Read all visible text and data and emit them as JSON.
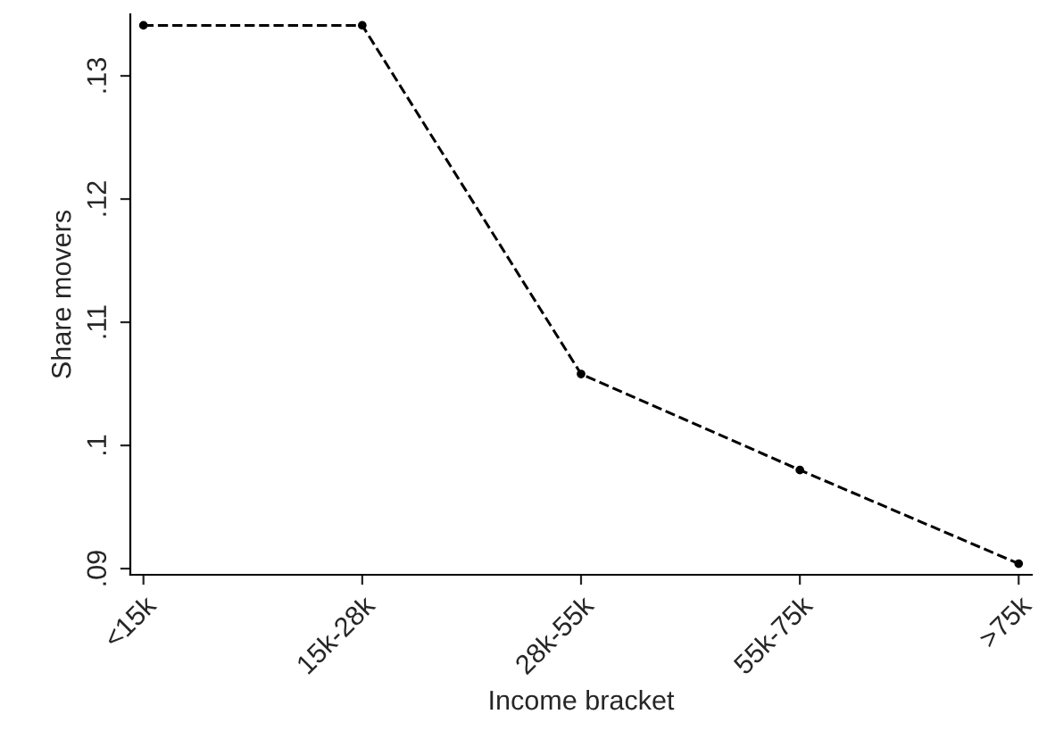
{
  "chart_data": {
    "type": "line",
    "xlabel": "Income bracket",
    "ylabel": "Share movers",
    "categories": [
      "<15k",
      "15k-28k",
      "28k-55k",
      "55k-75k",
      ">75k"
    ],
    "series": [
      {
        "color": "#000000",
        "values": [
          0.1341,
          0.1341,
          0.1058,
          0.098,
          0.0904
        ]
      }
    ],
    "ylim": [
      0.0895,
      0.135
    ],
    "yticks": [
      {
        "value": 0.09,
        "label": ".09"
      },
      {
        "value": 0.1,
        "label": ".1"
      },
      {
        "value": 0.11,
        "label": ".11"
      },
      {
        "value": 0.12,
        "label": ".12"
      },
      {
        "value": 0.13,
        "label": ".13"
      }
    ],
    "marker": "circle",
    "line_style": "dashed",
    "grid": false,
    "legend": false
  }
}
